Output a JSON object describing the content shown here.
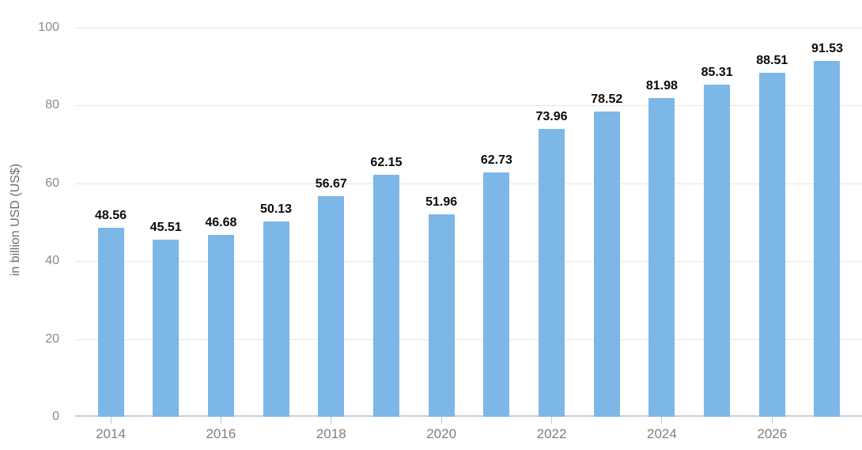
{
  "chart_data": {
    "type": "bar",
    "title": "",
    "ylabel": "in billion USD (US$)",
    "xlabel": "",
    "ylim": [
      0,
      100
    ],
    "yticks": [
      0,
      20,
      40,
      60,
      80,
      100
    ],
    "categories": [
      "2014",
      "2015",
      "2016",
      "2017",
      "2018",
      "2019",
      "2020",
      "2021",
      "2022",
      "2023",
      "2024",
      "2025",
      "2026",
      "2027"
    ],
    "values": [
      48.56,
      45.51,
      46.68,
      50.13,
      56.67,
      62.15,
      51.96,
      62.73,
      73.96,
      78.52,
      81.98,
      85.31,
      88.51,
      91.53
    ],
    "x_tick_labels": [
      "2014",
      "2016",
      "2018",
      "2020",
      "2022",
      "2024",
      "2026"
    ],
    "grid": true,
    "legend": "none",
    "colors": {
      "bar": "#7db7e8",
      "gridline": "#e6e6e6",
      "axis_line": "#ccd1d5",
      "tick": "#c6cbcf",
      "y_tick_label": "#8a8a8a",
      "x_tick_label": "#7f7f7f",
      "value_label": "#0a0a0a",
      "y_title": "#6f6f6f",
      "background": "#ffffff"
    }
  }
}
